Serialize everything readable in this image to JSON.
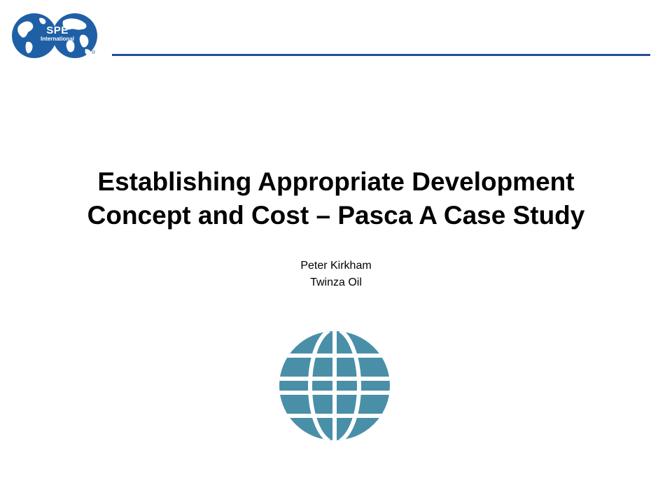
{
  "logo": {
    "line1": "SPE",
    "line2": "International",
    "registered": "®",
    "brand_color": "#1f5fa6"
  },
  "slide": {
    "title_line1": "Establishing Appropriate Development",
    "title_line2": "Concept and Cost – Pasca A Case Study",
    "author_name": "Peter Kirkham",
    "author_company": "Twinza Oil"
  },
  "colors": {
    "header_rule": "#1f4e9c",
    "globe": "#4a8fa8"
  },
  "icons": {
    "logo": "spe-globe-logo-icon",
    "emblem": "globe-grid-icon"
  }
}
